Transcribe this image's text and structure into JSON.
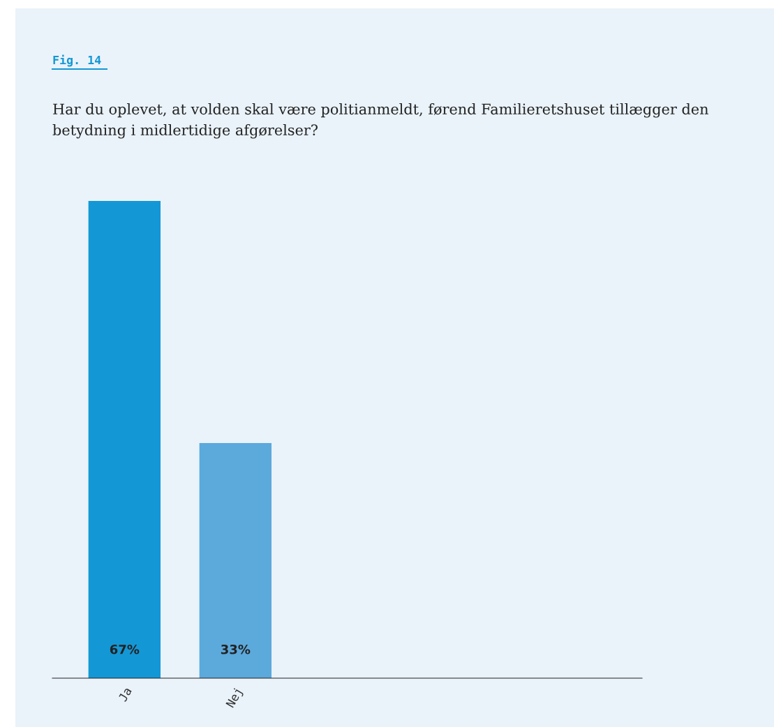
{
  "chart_data": {
    "type": "bar",
    "title": "Fig. 14",
    "subtitle": "Har du oplevet, at volden skal være politianmeldt, førend Familieretshuset tillægger den betydning i midlertidige afgørelser?",
    "categories": [
      "Ja",
      "Nej"
    ],
    "values": [
      67,
      33
    ],
    "colors": [
      "#1497d5",
      "#5ca9dc"
    ],
    "value_labels": [
      "67%",
      "33%"
    ],
    "grid": false,
    "legend": false
  }
}
